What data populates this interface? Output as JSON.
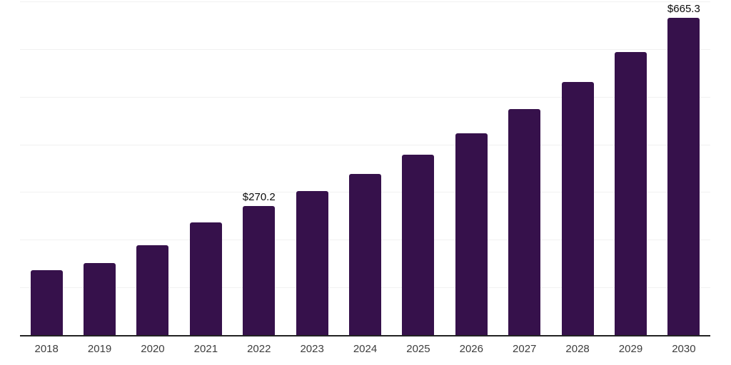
{
  "chart_data": {
    "type": "bar",
    "title": "",
    "xlabel": "",
    "ylabel": "",
    "categories": [
      "2018",
      "2019",
      "2020",
      "2021",
      "2022",
      "2023",
      "2024",
      "2025",
      "2026",
      "2027",
      "2028",
      "2029",
      "2030"
    ],
    "values": [
      135.8,
      151.3,
      188.8,
      236.8,
      270.2,
      302.4,
      338.5,
      378.8,
      424.0,
      474.5,
      531.1,
      594.4,
      665.3
    ],
    "data_labels": {
      "2022": "$270.2",
      "2030": "$665.3"
    },
    "ylim": [
      0,
      700
    ],
    "gridline_values": [
      100,
      200,
      300,
      400,
      500,
      600,
      700
    ],
    "grid": "horizontal-light",
    "legend": "none",
    "y_axis_tick_labels_visible": false
  },
  "colors": {
    "bar": "#36114B",
    "gridline": "#f1f1f1",
    "axis_line": "#222222",
    "tick_label": "#3d3d3d",
    "data_label": "#0a0a0a",
    "background": "#ffffff"
  }
}
